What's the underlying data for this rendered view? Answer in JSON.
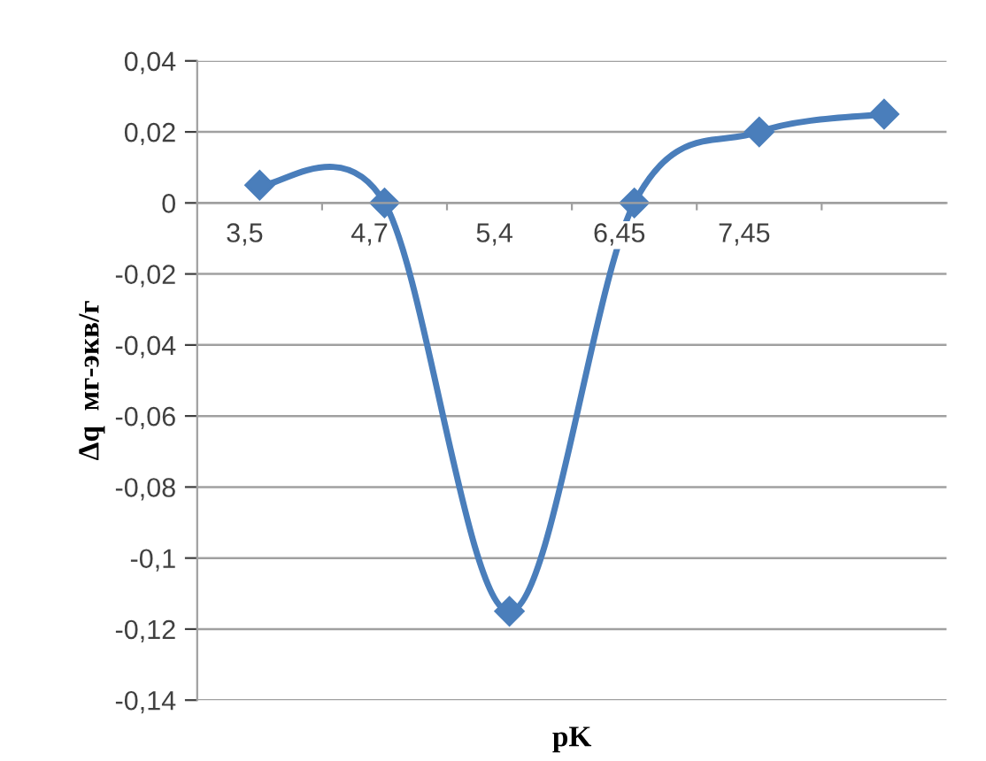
{
  "chart_data": {
    "type": "line",
    "xlabel": "pK",
    "ylabel": "Δq  мг-экв/г",
    "categories": [
      "3,5",
      "4,7",
      "5,4",
      "6,45",
      "7,45",
      null
    ],
    "series": [
      {
        "color": "#4a7ebb",
        "values": [
          0.005,
          0,
          -0.115,
          0,
          0.02,
          0.025
        ]
      }
    ],
    "ylim": [
      -0.14,
      0.04
    ],
    "yticks": [
      {
        "value": -0.14,
        "label": "-0,14"
      },
      {
        "value": -0.12,
        "label": "-0,12"
      },
      {
        "value": -0.1,
        "label": "-0,1"
      },
      {
        "value": -0.08,
        "label": "-0,08"
      },
      {
        "value": -0.06,
        "label": "-0,06"
      },
      {
        "value": -0.04,
        "label": "-0,04"
      },
      {
        "value": -0.02,
        "label": "-0,02"
      },
      {
        "value": 0,
        "label": "0"
      },
      {
        "value": 0.02,
        "label": "0,02"
      },
      {
        "value": 0.04,
        "label": "0,04"
      }
    ],
    "grid": "y",
    "marker": "diamond",
    "line_style": "solid"
  }
}
